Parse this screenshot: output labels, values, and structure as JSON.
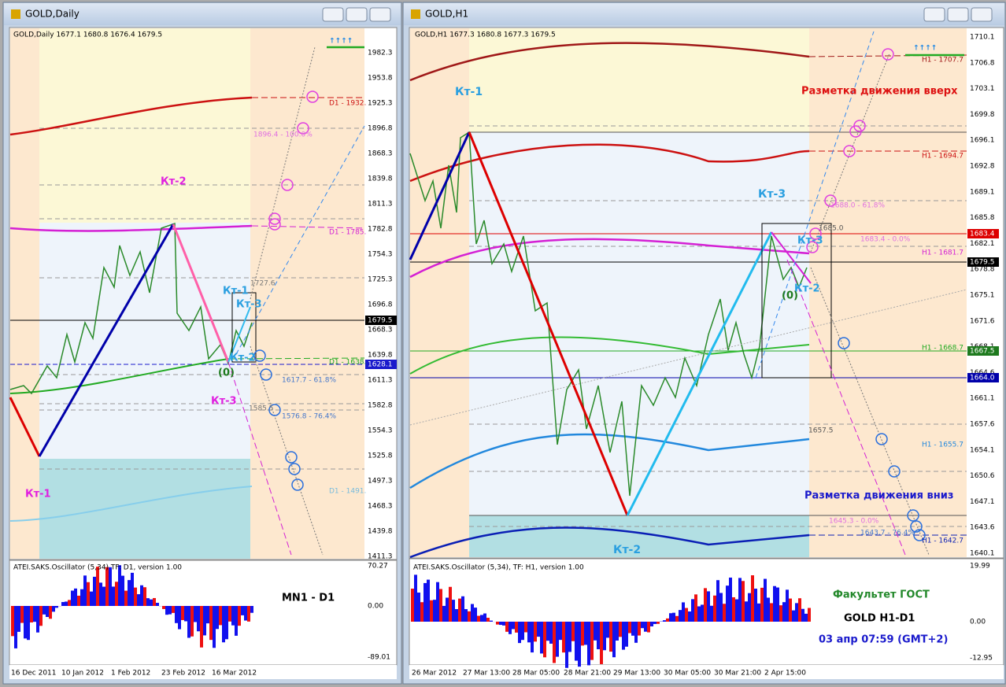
{
  "left": {
    "title": "GOLD,Daily",
    "info": "GOLD,Daily  1677.1 1680.8 1676.4 1679.5",
    "price_axis": [
      "1982.3",
      "1953.8",
      "1925.3",
      "1896.8",
      "1868.3",
      "1839.8",
      "1811.3",
      "1782.8",
      "1754.3",
      "1725.3",
      "1696.8",
      "1668.3",
      "1639.8",
      "1611.3",
      "1582.8",
      "1554.3",
      "1525.8",
      "1497.3",
      "1468.3",
      "1439.8",
      "1411.3"
    ],
    "price_tags": [
      "1679.5",
      "1628.1"
    ],
    "levels": [
      "D1 - 1932.",
      "1896.4 - 100.0%",
      "D1 - 1785.",
      "1727.6",
      "D1 - 1638.",
      "1617.7 - 61.8%",
      "1585.5",
      "1576.8 - 76.4%",
      "D1 - 1491."
    ],
    "marks": [
      "Кт-2",
      "Кт-1",
      "Кт-3",
      "Кт-1",
      "Кт-3",
      "Кт-2",
      "(0)"
    ],
    "arrows": "↑↑↑↑",
    "oscillator": {
      "label": "ATEI.SAKS.Oscillator (5,34)  TF: D1, version 1.00",
      "axis": [
        "70.27",
        "0.00",
        "-89.01"
      ],
      "notes": [
        "MN1 - D1"
      ]
    },
    "dates": [
      "16 Dec 2011",
      "10 Jan 2012",
      "1 Feb 2012",
      "23 Feb 2012",
      "16 Mar 2012"
    ]
  },
  "right": {
    "title": "GOLD,H1",
    "info": "GOLD,H1  1677.3 1680.8 1677.3 1679.5",
    "price_axis": [
      "1710.1",
      "1706.8",
      "1703.1",
      "1699.8",
      "1696.1",
      "1692.8",
      "1689.1",
      "1685.8",
      "1682.1",
      "1678.8",
      "1675.1",
      "1671.6",
      "1668.1",
      "1664.6",
      "1661.1",
      "1657.6",
      "1654.1",
      "1650.6",
      "1647.1",
      "1643.6",
      "1640.1"
    ],
    "price_tags": [
      "1683.4",
      "1679.5",
      "1667.5",
      "1664.0"
    ],
    "levels": [
      "H1 - 1707.7",
      "H1 - 1694.7",
      "1688.0 - 61.8%",
      "1685.0",
      "1683.4 - 0.0%",
      "H1 - 1681.7",
      "H1 - 1668.7",
      "1657.5",
      "H1 - 1655.7",
      "1645.3 - 0.0%",
      "1643.7 - 76.4%",
      "H1 - 1642.7"
    ],
    "marks": [
      "Кт-1",
      "Разметка движения вверх",
      "Кт-3",
      "Кт-3",
      "Кт-2",
      "(0)",
      "Кт-2",
      "Разметка движения вниз"
    ],
    "arrows": "↑↑↑↑",
    "oscillator": {
      "label": "ATEI.SAKS.Oscillator (5,34), TF: H1, version 1.00",
      "axis": [
        "19.99",
        "0.00",
        "-12.95"
      ],
      "notes": [
        "Факультет ГОСТ",
        "GOLD   H1-D1",
        "03 апр 07:59  (GMT+2)"
      ]
    },
    "dates": [
      "26 Mar 2012",
      "27 Mar 13:00",
      "28 Mar 05:00",
      "28 Mar 21:00",
      "29 Mar 13:00",
      "30 Mar 05:00",
      "30 Mar 21:00",
      "2 Apr 15:00"
    ]
  }
}
